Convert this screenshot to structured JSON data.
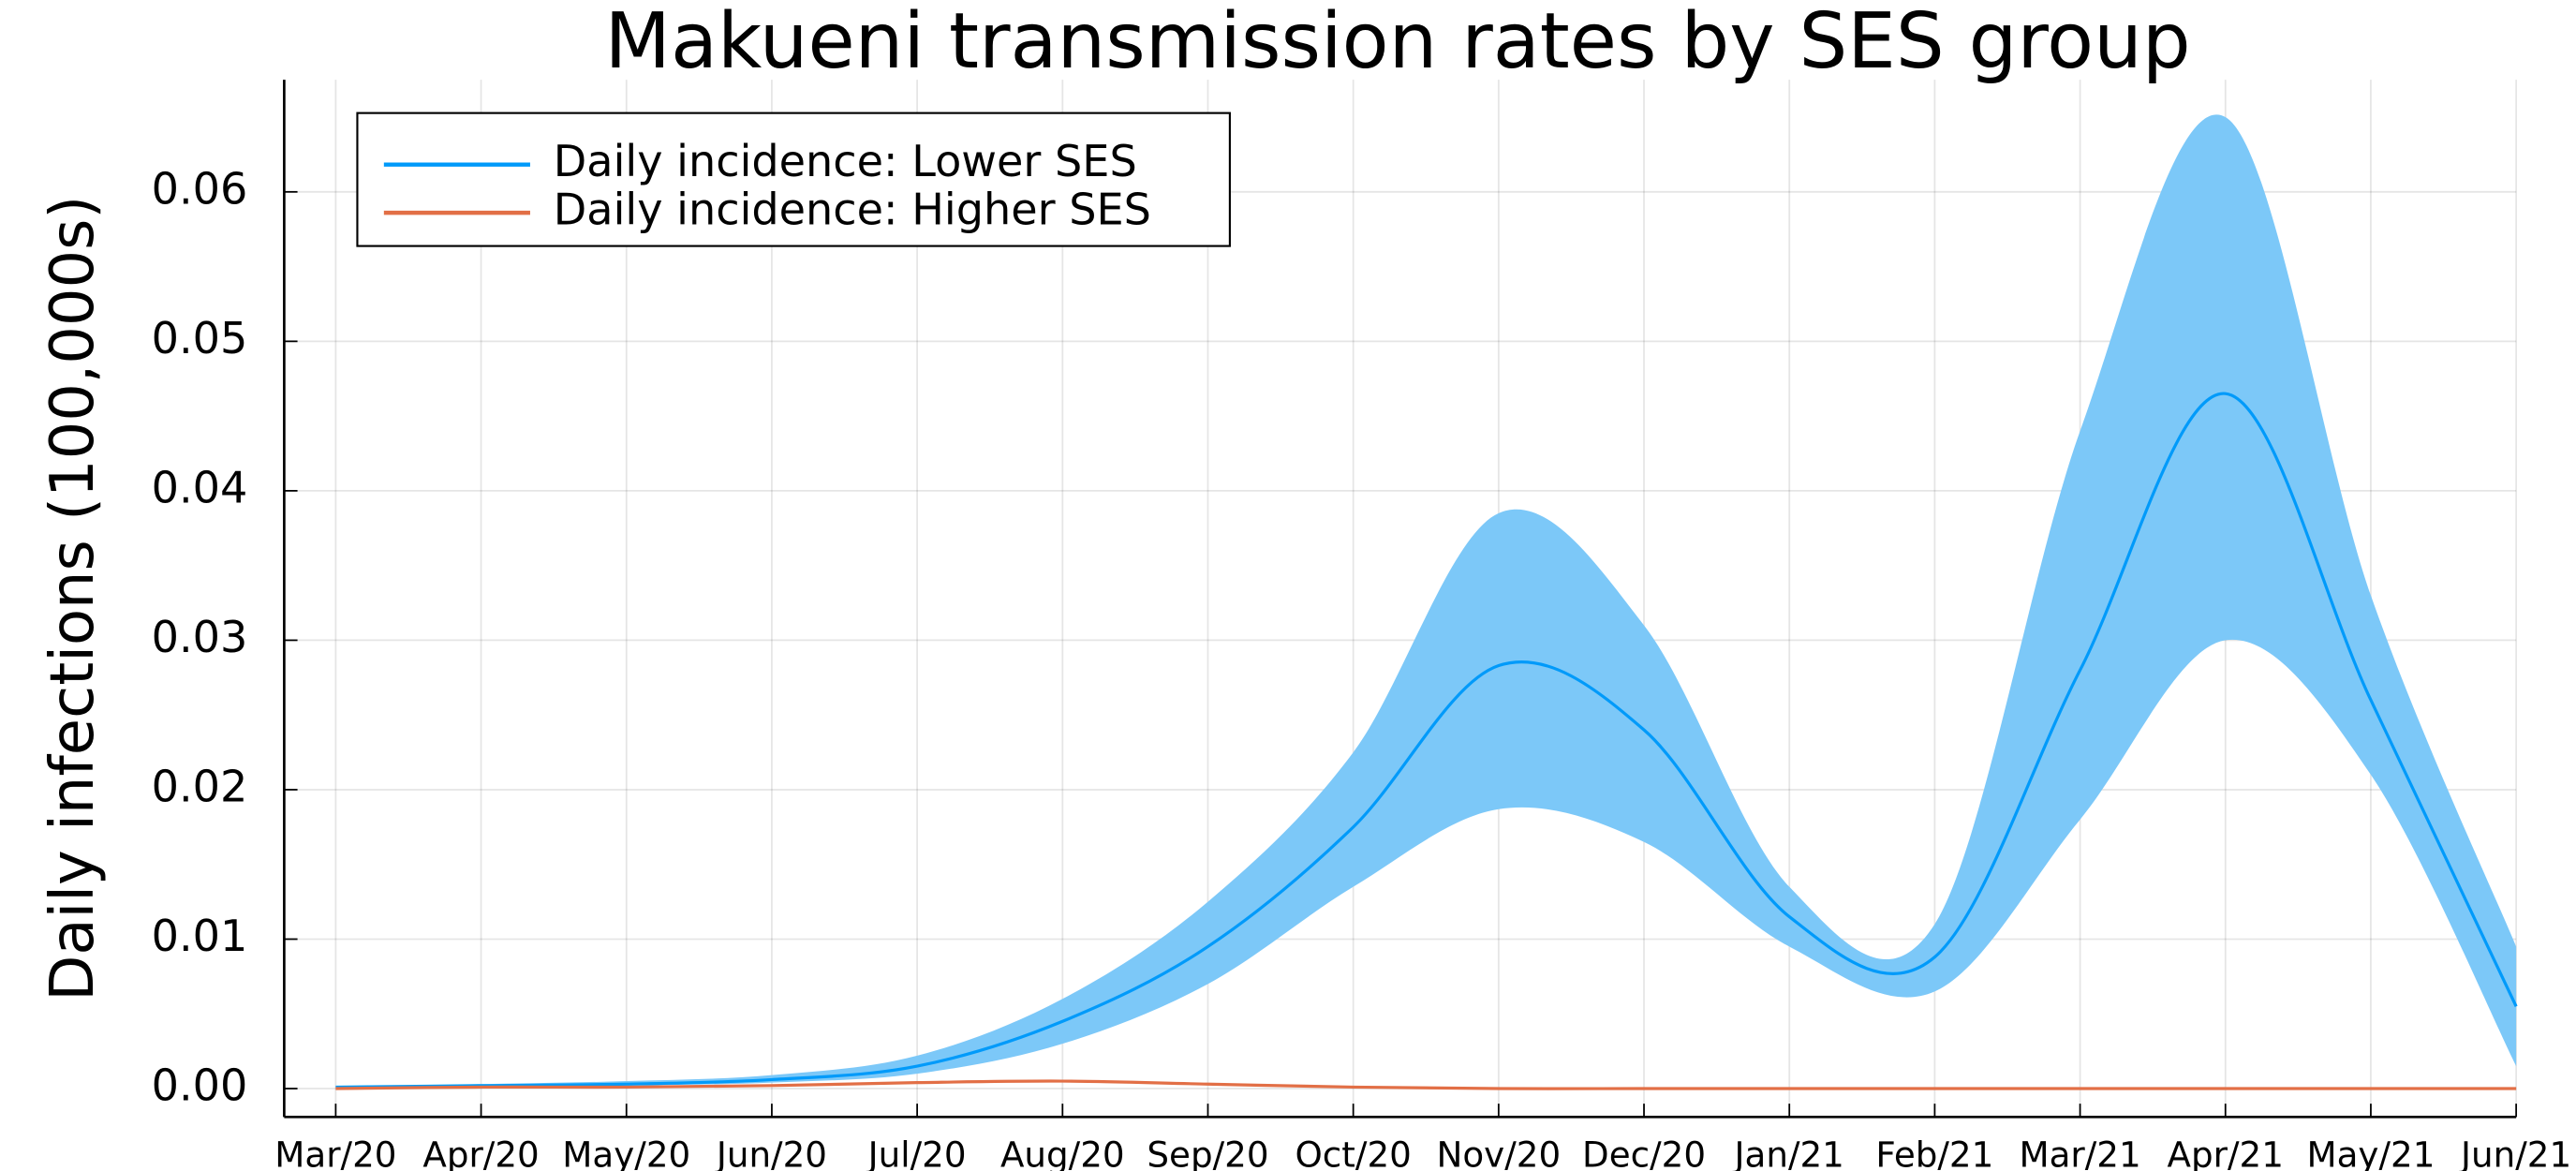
{
  "chart_data": {
    "type": "line",
    "title": "Makueni transmission rates by SES group",
    "ylabel": "Daily infections (100,000s)",
    "categories": [
      "Mar/20",
      "Apr/20",
      "May/20",
      "Jun/20",
      "Jul/20",
      "Aug/20",
      "Sep/20",
      "Oct/20",
      "Nov/20",
      "Dec/20",
      "Jan/21",
      "Feb/21",
      "Mar/21",
      "Apr/21",
      "May/21",
      "Jun/21"
    ],
    "series": [
      {
        "name": "Daily incidence: Lower SES",
        "color": "#009afa",
        "band_color": "#7cc8f8",
        "values": [
          0.0001,
          0.0002,
          0.0003,
          0.0006,
          0.0015,
          0.0045,
          0.0095,
          0.0175,
          0.0283,
          0.024,
          0.0115,
          0.0088,
          0.028,
          0.0465,
          0.026,
          0.0055
        ],
        "lower": [
          0.0001,
          0.0001,
          0.0002,
          0.0004,
          0.001,
          0.003,
          0.007,
          0.0135,
          0.0187,
          0.0165,
          0.0095,
          0.0065,
          0.018,
          0.03,
          0.021,
          0.0015
        ],
        "upper": [
          0.0001,
          0.0003,
          0.0005,
          0.0009,
          0.0022,
          0.006,
          0.0125,
          0.0225,
          0.0385,
          0.031,
          0.0135,
          0.011,
          0.044,
          0.065,
          0.033,
          0.0095
        ]
      },
      {
        "name": "Daily incidence: Higher SES",
        "color": "#e26f46",
        "values": [
          0,
          0.0001,
          0.0001,
          0.0002,
          0.0004,
          0.0005,
          0.0003,
          0.0001,
          0,
          0,
          0,
          0,
          0,
          0,
          0,
          0
        ]
      }
    ],
    "ylim": [
      -0.0019,
      0.0675
    ],
    "yticks": [
      {
        "value": 0,
        "label": "0.00"
      },
      {
        "value": 0.01,
        "label": "0.01"
      },
      {
        "value": 0.02,
        "label": "0.02"
      },
      {
        "value": 0.03,
        "label": "0.03"
      },
      {
        "value": 0.04,
        "label": "0.04"
      },
      {
        "value": 0.05,
        "label": "0.05"
      },
      {
        "value": 0.06,
        "label": "0.06"
      }
    ],
    "grid": true,
    "legend": "top left"
  }
}
